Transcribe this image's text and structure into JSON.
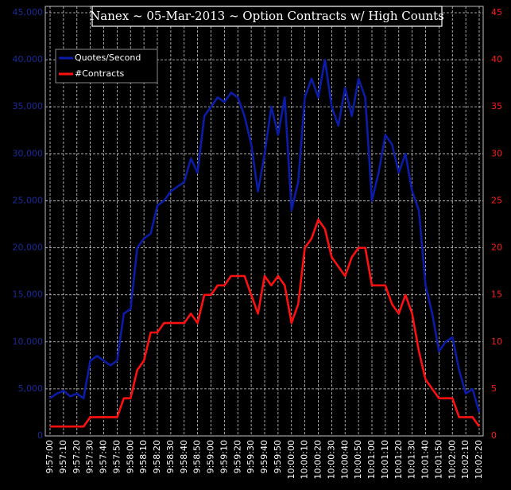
{
  "chart_data": {
    "type": "line",
    "title": "Nanex ~ 05-Mar-2013 ~ Option Contracts w/ High Counts",
    "categories": [
      "9:57:00",
      null,
      "9:57:10",
      null,
      "9:57:20",
      null,
      "9:57:30",
      null,
      "9:57:40",
      null,
      "9:57:50",
      null,
      "9:58:00",
      null,
      "9:58:10",
      null,
      "9:58:20",
      null,
      "9:58:30",
      null,
      "9:58:40",
      null,
      "9:58:50",
      null,
      "9:59:00",
      null,
      "9:59:10",
      null,
      "9:59:20",
      null,
      "9:59:30",
      null,
      "9:59:40",
      null,
      "9:59:50",
      null,
      "10:00:00",
      null,
      "10:00:10",
      null,
      "10:00:20",
      null,
      "10:00:30",
      null,
      "10:00:40",
      null,
      "10:00:50",
      null,
      "10:01:00",
      null,
      "10:01:10",
      null,
      "10:01:20",
      null,
      "10:01:30",
      null,
      "10:01:40",
      null,
      "10:01:50",
      null,
      "10:02:00",
      null,
      "10:02:10",
      null,
      "10:02:20"
    ],
    "series": [
      {
        "name": "Quotes/Second",
        "color": "#0a1ca8",
        "axis": "y",
        "values": [
          4000,
          4500,
          4800,
          4200,
          4500,
          4000,
          8000,
          8500,
          8000,
          7500,
          8000,
          13000,
          13500,
          20000,
          21000,
          21500,
          24500,
          25000,
          26000,
          26500,
          27000,
          29500,
          28000,
          34000,
          35000,
          36000,
          35500,
          36500,
          36000,
          34000,
          31000,
          26000,
          30000,
          35000,
          32000,
          36000,
          24000,
          27000,
          36000,
          38000,
          36000,
          40000,
          35000,
          33000,
          37000,
          34000,
          38000,
          36000,
          25000,
          28000,
          32000,
          31000,
          28000,
          30000,
          26000,
          24000,
          16000,
          13000,
          9000,
          10000,
          10500,
          7000,
          4500,
          5000,
          2500
        ]
      },
      {
        "name": "#Contracts",
        "color": "#ff1010",
        "axis": "y2",
        "values": [
          1,
          1,
          1,
          1,
          1,
          1,
          2,
          2,
          2,
          2,
          2,
          4,
          4,
          7,
          8,
          11,
          11,
          12,
          12,
          12,
          12,
          13,
          12,
          15,
          15,
          16,
          16,
          17,
          17,
          17,
          15,
          13,
          17,
          16,
          17,
          16,
          12,
          14,
          20,
          21,
          23,
          22,
          19,
          18,
          17,
          19,
          20,
          20,
          16,
          16,
          16,
          14,
          13,
          15,
          13,
          9,
          6,
          5,
          4,
          4,
          4,
          2,
          2,
          2,
          1
        ]
      }
    ],
    "ylim": [
      0,
      45000
    ],
    "yticks": [
      0,
      {
        "value": 5000,
        "label": "5,000"
      },
      {
        "value": 10000,
        "label": "10,000"
      },
      {
        "value": 15000,
        "label": "15,000"
      },
      {
        "value": 20000,
        "label": "20,000"
      },
      {
        "value": 25000,
        "label": "25,000"
      },
      {
        "value": 30000,
        "label": "30,000"
      },
      {
        "value": 35000,
        "label": "35,000"
      },
      {
        "value": 40000,
        "label": "40,000"
      },
      {
        "value": 45000,
        "label": "45,000"
      }
    ],
    "y2lim": [
      0,
      45
    ],
    "y2ticks": [
      0,
      5,
      10,
      15,
      20,
      25,
      30,
      35,
      40,
      45
    ],
    "grid": true,
    "legend": "top-left"
  }
}
